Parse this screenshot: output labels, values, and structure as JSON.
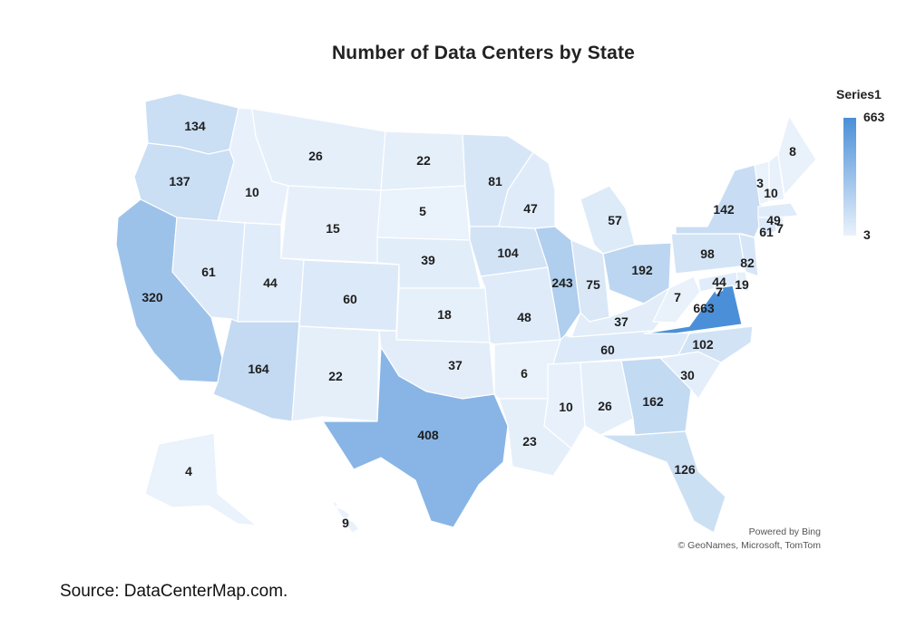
{
  "title": "Number of Data Centers by State",
  "legend": {
    "title": "Series1",
    "max_label": "663",
    "min_label": "3",
    "max_color": "#4a8fd8",
    "min_color": "#eaf2fb"
  },
  "credits": {
    "line1": "Powered by Bing",
    "line2": "© GeoNames, Microsoft, TomTom"
  },
  "source": "Source: DataCenterMap.com.",
  "colors": {
    "stroke": "#ffffff",
    "label": "#1e1e1e"
  },
  "chart_data": {
    "type": "choropleth",
    "scale": {
      "min": 3,
      "max": 663
    },
    "states": [
      {
        "code": "WA",
        "value": 134
      },
      {
        "code": "OR",
        "value": 137
      },
      {
        "code": "CA",
        "value": 320
      },
      {
        "code": "ID",
        "value": 10
      },
      {
        "code": "NV",
        "value": 61
      },
      {
        "code": "MT",
        "value": 26
      },
      {
        "code": "WY",
        "value": 15
      },
      {
        "code": "UT",
        "value": 44
      },
      {
        "code": "AZ",
        "value": 164
      },
      {
        "code": "CO",
        "value": 60
      },
      {
        "code": "NM",
        "value": 22
      },
      {
        "code": "ND",
        "value": 22
      },
      {
        "code": "SD",
        "value": 5
      },
      {
        "code": "NE",
        "value": 39
      },
      {
        "code": "KS",
        "value": 18
      },
      {
        "code": "OK",
        "value": 37
      },
      {
        "code": "TX",
        "value": 408
      },
      {
        "code": "MN",
        "value": 81
      },
      {
        "code": "IA",
        "value": 104
      },
      {
        "code": "MO",
        "value": 48
      },
      {
        "code": "AR",
        "value": 6
      },
      {
        "code": "LA",
        "value": 23
      },
      {
        "code": "WI",
        "value": 47
      },
      {
        "code": "IL",
        "value": 243
      },
      {
        "code": "MI",
        "value": 57
      },
      {
        "code": "IN",
        "value": 75
      },
      {
        "code": "OH",
        "value": 192
      },
      {
        "code": "KY",
        "value": 37
      },
      {
        "code": "TN",
        "value": 60
      },
      {
        "code": "MS",
        "value": 10
      },
      {
        "code": "AL",
        "value": 26
      },
      {
        "code": "GA",
        "value": 162
      },
      {
        "code": "FL",
        "value": 126
      },
      {
        "code": "SC",
        "value": 30
      },
      {
        "code": "NC",
        "value": 102
      },
      {
        "code": "VA",
        "value": 663
      },
      {
        "code": "WV",
        "value": 7
      },
      {
        "code": "PA",
        "value": 98
      },
      {
        "code": "NY",
        "value": 142
      },
      {
        "code": "NJ",
        "value": 82
      },
      {
        "code": "DE",
        "value": 19
      },
      {
        "code": "MD",
        "value": 44
      },
      {
        "code": "DC",
        "value": 7
      },
      {
        "code": "CT",
        "value": 61
      },
      {
        "code": "RI",
        "value": 7
      },
      {
        "code": "MA",
        "value": 49
      },
      {
        "code": "VT",
        "value": 3
      },
      {
        "code": "NH",
        "value": 10
      },
      {
        "code": "ME",
        "value": 8
      },
      {
        "code": "AK",
        "value": 4
      },
      {
        "code": "HI",
        "value": 9
      }
    ]
  }
}
